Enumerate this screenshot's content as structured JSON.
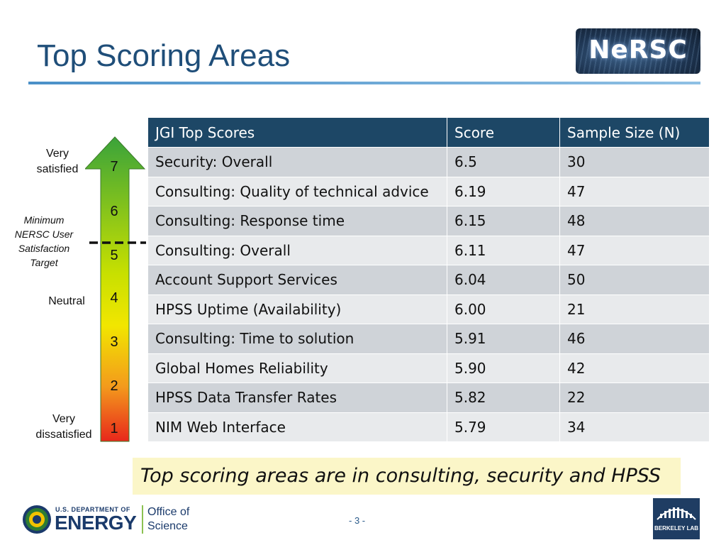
{
  "slide": {
    "title": "Top Scoring Areas",
    "page_number": "- 3 -",
    "takeaway": "Top scoring areas are in consulting, security and HPSS"
  },
  "logos": {
    "nersc": "NeRSC",
    "doe_top": "U.S. DEPARTMENT OF",
    "doe_main": "ENERGY",
    "office_line1": "Office of",
    "office_line2": "Science",
    "berkeley": "BERKELEY LAB"
  },
  "scale": {
    "numbers": [
      "7",
      "6",
      "5",
      "4",
      "3",
      "2",
      "1"
    ],
    "very_satisfied_1": "Very",
    "very_satisfied_2": "satisfied",
    "neutral": "Neutral",
    "very_dissatisfied_1": "Very",
    "very_dissatisfied_2": "dissatisfied",
    "target_1": "Minimum",
    "target_2": "NERSC User",
    "target_3": "Satisfaction",
    "target_4": "Target",
    "colors": {
      "top": "#3aa33a",
      "mid": "#f2e600",
      "bottom": "#e8271b"
    }
  },
  "table": {
    "headers": [
      "JGI Top Scores",
      "Score",
      "Sample Size (N)"
    ],
    "rows": [
      [
        "Security: Overall",
        "6.5",
        "30"
      ],
      [
        "Consulting: Quality of technical advice",
        "6.19",
        "47"
      ],
      [
        "Consulting: Response time",
        "6.15",
        "48"
      ],
      [
        "Consulting: Overall",
        "6.11",
        "47"
      ],
      [
        "Account Support Services",
        "6.04",
        "50"
      ],
      [
        "HPSS Uptime (Availability)",
        "6.00",
        "21"
      ],
      [
        "Consulting: Time to solution",
        "5.91",
        "46"
      ],
      [
        "Global Homes Reliability",
        "5.90",
        "42"
      ],
      [
        "HPSS Data Transfer Rates",
        "5.82",
        "22"
      ],
      [
        "NIM Web Interface",
        "5.79",
        "34"
      ]
    ]
  }
}
